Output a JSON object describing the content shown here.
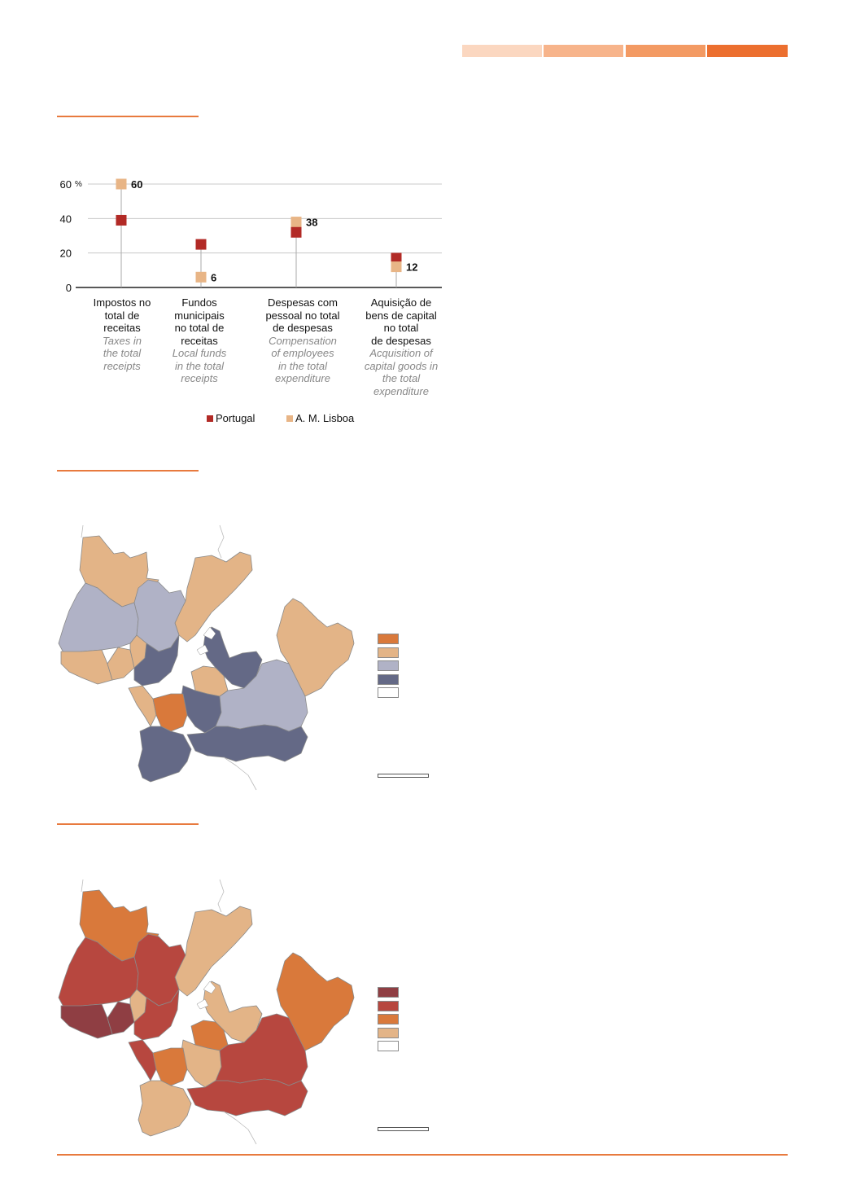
{
  "header_strip": {
    "colors": [
      "#fbd7c0",
      "#f7b48b",
      "#f39a63",
      "#ec6f2f"
    ]
  },
  "chart_data": {
    "type": "scatter",
    "y_unit": "%",
    "ylim": [
      0,
      60
    ],
    "yticks": [
      "0",
      "20",
      "40",
      "60"
    ],
    "grid": true,
    "legend_placement": "bottom",
    "categories": [
      {
        "pt": "Impostos no total de receitas",
        "en": "Taxes in the total receipts"
      },
      {
        "pt": "Fundos municipais no total de receitas",
        "en": "Local funds in the total receipts"
      },
      {
        "pt": "Despesas com pessoal no total de despesas",
        "en": "Compensation of employees in the total expenditure"
      },
      {
        "pt": "Aquisição de bens de capital no total de despesas",
        "en": "Acquisition of capital goods in the total expenditure"
      }
    ],
    "category_lines": [
      [
        "Impostos no",
        "total de",
        "receitas"
      ],
      [
        "Fundos",
        "municipais",
        "no total de",
        "receitas"
      ],
      [
        "Despesas com",
        "pessoal no total",
        "de despesas"
      ],
      [
        "Aquisição de",
        "bens de capital",
        "no total",
        "de despesas"
      ]
    ],
    "category_lines_en": [
      [
        "Taxes in",
        "the total",
        "receipts"
      ],
      [
        "Local funds",
        "in the total",
        "receipts"
      ],
      [
        "Compensation",
        "of employees",
        "in the total",
        "expenditure"
      ],
      [
        "Acquisition of",
        "capital goods in",
        "the total",
        "expenditure"
      ]
    ],
    "series": [
      {
        "name": "Portugal",
        "color": "#b22a26",
        "values": [
          39,
          25,
          32,
          17
        ]
      },
      {
        "name": "A. M. Lisboa",
        "color": "#e8b586",
        "values": [
          60,
          6,
          38,
          12
        ]
      }
    ],
    "data_labels": [
      "60",
      "6",
      "38",
      "12"
    ]
  },
  "map1": {
    "legend_colors": [
      "#d9793b",
      "#e3b487",
      "#b0b2c6",
      "#646986",
      "#ffffff"
    ]
  },
  "map2": {
    "legend_colors": [
      "#8f3e43",
      "#b7473f",
      "#d9793b",
      "#e3b487",
      "#ffffff"
    ]
  }
}
